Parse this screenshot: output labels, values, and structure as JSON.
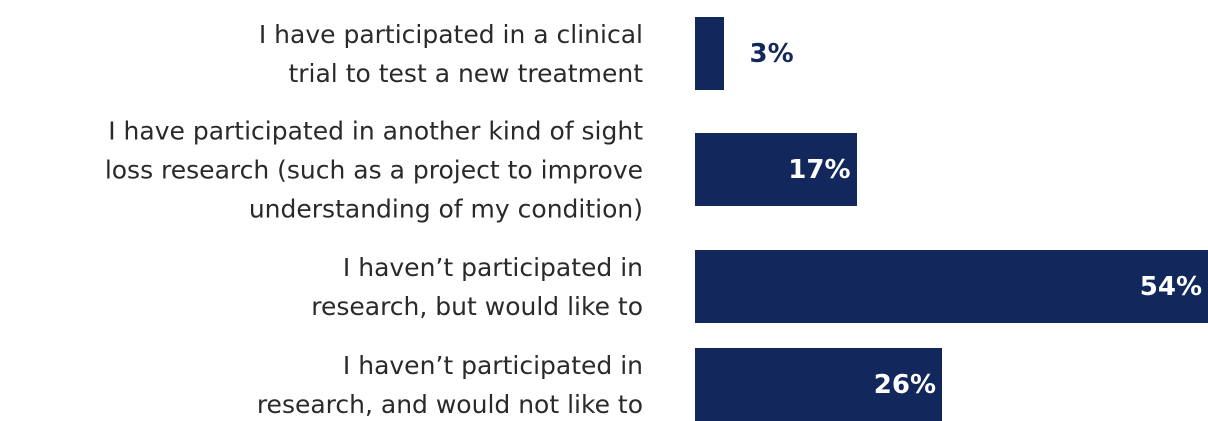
{
  "chart_data": {
    "type": "bar",
    "orientation": "horizontal",
    "categories": [
      "I have participated in a clinical\ntrial to test a new treatment",
      "I have participated in another kind of sight\nloss research (such as a project to improve\nunderstanding of my condition)",
      "I haven’t participated in\nresearch, but would like to",
      "I haven’t participated in\nresearch, and would not like to"
    ],
    "values": [
      3,
      17,
      54,
      26
    ],
    "value_labels": [
      "3%",
      "17%",
      "54%",
      "26%"
    ],
    "color": "#12275c"
  }
}
